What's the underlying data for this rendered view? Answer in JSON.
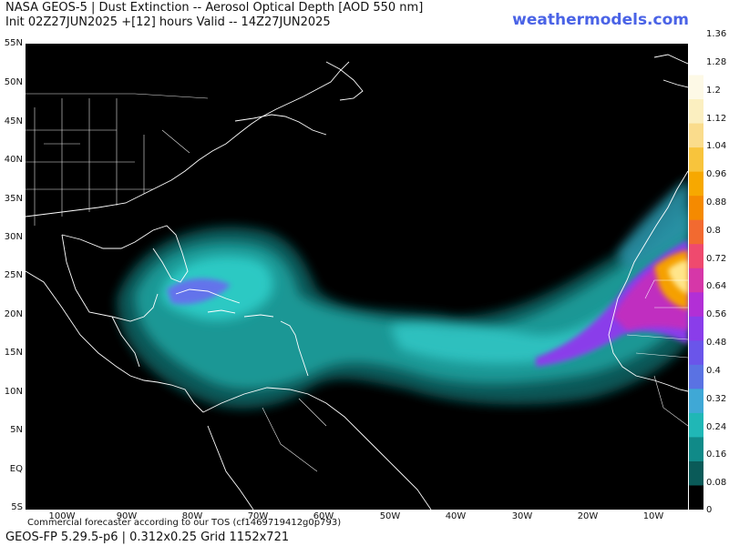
{
  "header": {
    "title_line1": "NASA GEOS-5 | Dust Extinction -- Aerosol Optical Depth [AOD 550 nm]",
    "title_line2": "Init 02Z27JUN2025 +[12] hours Valid -- 14Z27JUN2025",
    "brand": "weathermodels.com"
  },
  "map": {
    "lat_labels": [
      "55N",
      "50N",
      "45N",
      "40N",
      "35N",
      "30N",
      "25N",
      "20N",
      "15N",
      "10N",
      "5N",
      "EQ",
      "5S"
    ],
    "lon_labels": [
      "100W",
      "90W",
      "80W",
      "70W",
      "60W",
      "50W",
      "40W",
      "30W",
      "20W",
      "10W"
    ],
    "colors": {
      "ocean": "#000000",
      "borders": "#ffffff",
      "dust_low": "#0d5c5c",
      "dust_mid": "#27c2c0",
      "dust_high": "#8a4be8",
      "dust_peak": "#ffe14d"
    }
  },
  "colorbar": {
    "labels": [
      "1.36",
      "1.28",
      "1.2",
      "1.12",
      "1.04",
      "0.96",
      "0.88",
      "0.8",
      "0.72",
      "0.64",
      "0.56",
      "0.48",
      "0.4",
      "0.32",
      "0.24",
      "0.16",
      "0.08",
      "0"
    ],
    "colors": [
      "#ffffff",
      "#fdf9e6",
      "#fbefc0",
      "#fadc8c",
      "#f8c43c",
      "#f7a800",
      "#f58a00",
      "#f26a30",
      "#ef4a6e",
      "#d637a8",
      "#b22fd6",
      "#8a3dea",
      "#6a55ea",
      "#5a72e3",
      "#3fa8d6",
      "#20b7b6",
      "#108a88",
      "#0a5a58",
      "#000000"
    ]
  },
  "footer": {
    "disclaimer": "Commercial forecaster according to our TOS (cf1469719412g0p793)",
    "model_info": "GEOS-FP 5.29.5-p6 | 0.312x0.25 Grid 1152x721"
  }
}
